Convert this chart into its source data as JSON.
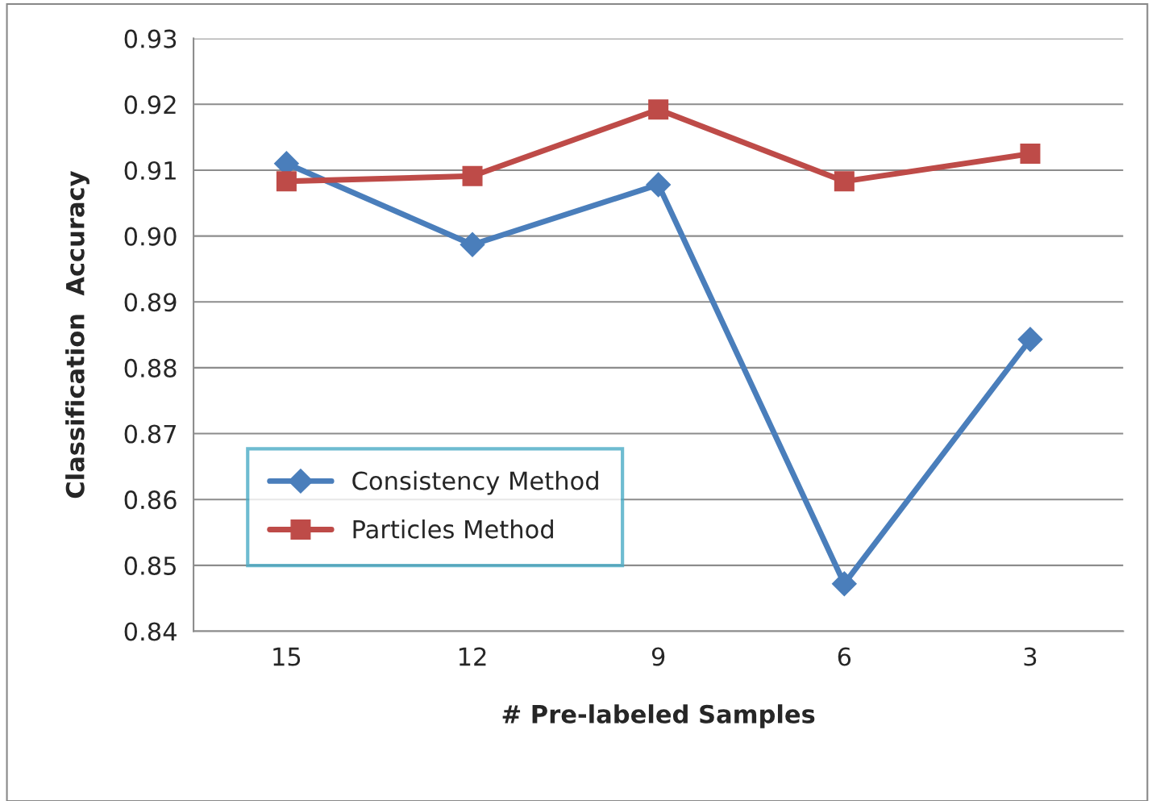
{
  "chart_data": {
    "type": "line",
    "xlabel": "# Pre-labeled Samples",
    "ylabel": "Classification  Accuracy",
    "categories": [
      "15",
      "12",
      "9",
      "6",
      "3"
    ],
    "series": [
      {
        "name": "Consistency Method",
        "color": "#4a7ebb",
        "marker": "diamond",
        "values": [
          0.911,
          0.8987,
          0.9078,
          0.8472,
          0.8843
        ]
      },
      {
        "name": "Particles Method",
        "color": "#be4b48",
        "marker": "square",
        "values": [
          0.9083,
          0.9091,
          0.9192,
          0.9083,
          0.9125
        ]
      }
    ],
    "ylim": [
      0.84,
      0.93
    ],
    "yticks": [
      0.84,
      0.85,
      0.86,
      0.87,
      0.88,
      0.89,
      {
        "value": 0.9,
        "label": "0.90"
      },
      0.91,
      0.92,
      0.93
    ],
    "grid": "y",
    "legend": "bottom left",
    "line_style": "solid"
  }
}
